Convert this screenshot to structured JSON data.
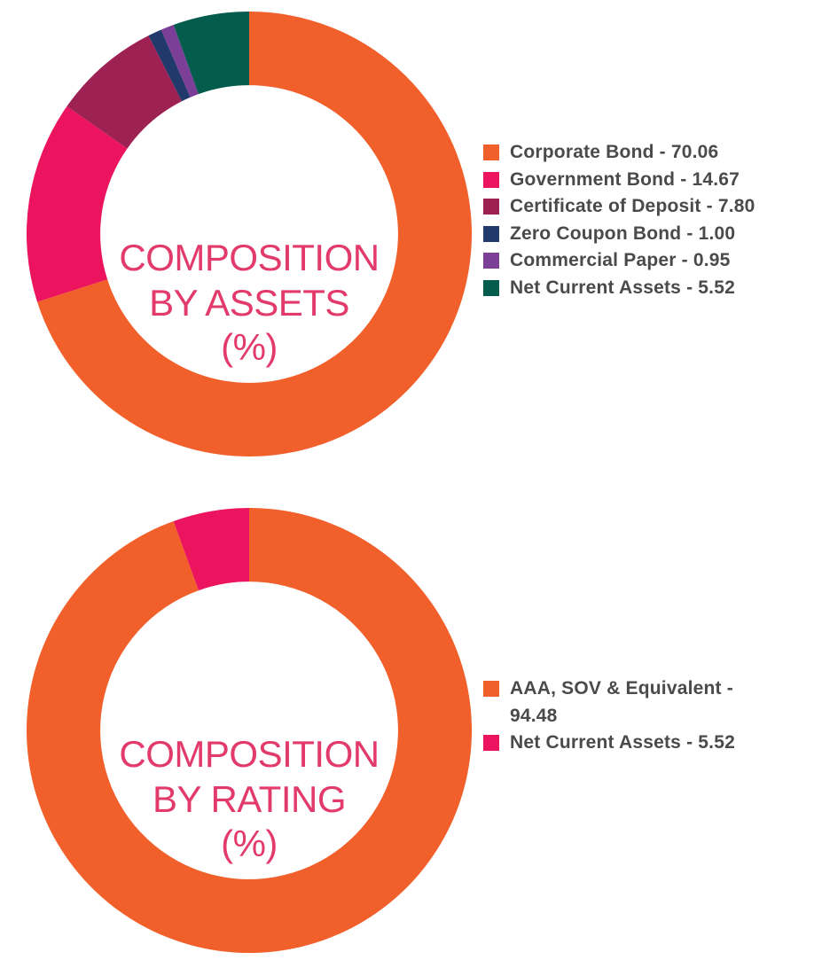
{
  "page": {
    "background_color": "#ffffff",
    "legend_text_color": "#4a4a4c",
    "title_text_color": "#e23a6b"
  },
  "chart_data": [
    {
      "type": "pie",
      "variant": "donut",
      "title": "COMPOSITION BY ASSETS (%)",
      "title_lines": [
        "COMPOSITION",
        "BY ASSETS",
        "(%)"
      ],
      "title_color": "#e23a6b",
      "categories": [
        "Corporate Bond",
        "Government Bond",
        "Certificate of Deposit",
        "Zero Coupon Bond",
        "Commercial Paper",
        "Net Current Assets"
      ],
      "values": [
        70.06,
        14.67,
        7.8,
        1.0,
        0.95,
        5.52
      ],
      "colors": [
        "#f1602b",
        "#ec145f",
        "#9e2153",
        "#21396b",
        "#7b3f98",
        "#035c4c"
      ],
      "legend_entries": [
        "Corporate Bond - 70.06",
        "Government Bond - 14.67",
        "Certificate of Deposit - 7.80",
        "Zero Coupon Bond - 1.00",
        "Commercial Paper - 0.95",
        "Net Current Assets - 5.52"
      ],
      "legend_format": "{label} - {value}",
      "legend_position": "right",
      "legend_text_color": "#4a4a4c",
      "start_angle_deg": 0,
      "direction": "clockwise",
      "inner_radius_ratio": 0.669,
      "total": 100
    },
    {
      "type": "pie",
      "variant": "donut",
      "title": "COMPOSITION BY RATING (%)",
      "title_lines": [
        "COMPOSITION",
        "BY RATING",
        "(%)"
      ],
      "title_color": "#e23a6b",
      "categories": [
        "AAA, SOV & Equivalent",
        "Net Current Assets"
      ],
      "values": [
        94.48,
        5.52
      ],
      "colors": [
        "#f1602b",
        "#ec145f"
      ],
      "legend_entries": [
        "AAA, SOV & Equivalent - 94.48",
        "Net Current Assets - 5.52"
      ],
      "legend_format": "{label} - {value}",
      "legend_position": "right",
      "legend_text_color": "#4a4a4c",
      "start_angle_deg": 0,
      "direction": "clockwise",
      "inner_radius_ratio": 0.669,
      "total": 100
    }
  ]
}
